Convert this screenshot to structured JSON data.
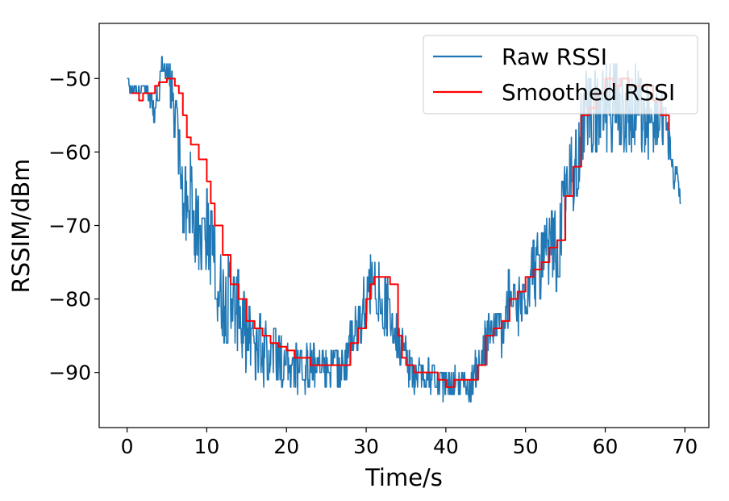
{
  "chart_data": {
    "type": "line",
    "title": "",
    "xlabel": "Time/s",
    "ylabel": "RSSIM/dBm",
    "xlim": [
      -3.5,
      73
    ],
    "ylim": [
      -97.5,
      -42.5
    ],
    "xticks": [
      0,
      10,
      20,
      30,
      40,
      50,
      60,
      70
    ],
    "yticks": [
      -90,
      -80,
      -70,
      -60,
      -50
    ],
    "xtick_labels": [
      "0",
      "10",
      "20",
      "30",
      "40",
      "50",
      "60",
      "70"
    ],
    "ytick_labels": [
      "−90",
      "−80",
      "−70",
      "−60",
      "−50"
    ],
    "grid": false,
    "legend": "top-right",
    "series": [
      {
        "name": "Raw RSSI",
        "color": "#1f77b4",
        "style": "noisy",
        "x": [
          0,
          0.5,
          1,
          1.5,
          2,
          2.5,
          3,
          3.5,
          4,
          4.5,
          5,
          5.5,
          6,
          6.5,
          7,
          7.5,
          8,
          8.5,
          9,
          9.5,
          10,
          11,
          12,
          13,
          14,
          15,
          16,
          17,
          18,
          19,
          20,
          21,
          22,
          23,
          24,
          25,
          26,
          27,
          28,
          29,
          30,
          31,
          32,
          33,
          34,
          35,
          36,
          37,
          38,
          39,
          40,
          41,
          42,
          43,
          44,
          45,
          46,
          47,
          48,
          49,
          50,
          51,
          52,
          53,
          54,
          55,
          56,
          57,
          58,
          59,
          60,
          61,
          62,
          63,
          64,
          65,
          66,
          67,
          68,
          68.5,
          69,
          69.5
        ],
        "y": [
          -50,
          -52,
          -51,
          -52,
          -51,
          -52,
          -54,
          -55,
          -50,
          -48,
          -49,
          -51,
          -56,
          -60,
          -66,
          -69,
          -65,
          -70,
          -71,
          -72,
          -70,
          -75,
          -80,
          -80,
          -82,
          -85,
          -86,
          -87,
          -87,
          -88,
          -89,
          -89,
          -90,
          -89,
          -89,
          -90,
          -89,
          -90,
          -86,
          -84,
          -79,
          -77,
          -80,
          -82,
          -85,
          -88,
          -91,
          -90,
          -90,
          -91,
          -92,
          -91,
          -91,
          -92,
          -89,
          -86,
          -85,
          -84,
          -80,
          -82,
          -78,
          -76,
          -76,
          -74,
          -74,
          -66,
          -62,
          -57,
          -53,
          -56,
          -55,
          -53,
          -54,
          -55,
          -54,
          -56,
          -56,
          -55,
          -59,
          -63,
          -64,
          -67
        ],
        "amp": [
          0.5,
          0.8,
          0.8,
          0.8,
          0.8,
          1,
          2,
          2.5,
          2,
          2,
          2,
          3,
          4,
          5,
          6,
          6,
          6,
          6,
          6,
          6,
          6,
          6,
          6,
          6,
          6,
          5,
          5,
          5,
          4,
          4,
          4,
          3.5,
          3.5,
          3.5,
          3,
          3,
          3,
          3,
          3.5,
          4,
          4.5,
          4.5,
          4.5,
          4,
          3.5,
          3,
          2.5,
          2.5,
          2.5,
          2,
          2,
          2,
          2,
          2,
          3,
          4,
          4,
          4,
          4.5,
          5,
          5,
          5,
          5.5,
          6,
          6,
          6,
          6,
          6,
          6,
          6.5,
          7,
          7,
          7,
          6.5,
          6,
          5.5,
          4.5,
          4,
          3,
          2,
          1.5,
          1
        ]
      },
      {
        "name": "Smoothed RSSI",
        "color": "#ff0000",
        "style": "step",
        "x": [
          0.5,
          1.5,
          2,
          2.5,
          3,
          3.5,
          4,
          5,
          6,
          6.5,
          7,
          7.5,
          8,
          9,
          10,
          10.5,
          11,
          12,
          13,
          14,
          15,
          16,
          17,
          18,
          19,
          20,
          21,
          22,
          23,
          24,
          25,
          26,
          27,
          27.5,
          28,
          29,
          30,
          30.5,
          31,
          32,
          33,
          34,
          34.5,
          35,
          36,
          37,
          38,
          39,
          40,
          41,
          42,
          43,
          44,
          45,
          46,
          47,
          48,
          49,
          50,
          51,
          52,
          53,
          54,
          55,
          56,
          57,
          58,
          59,
          60,
          61,
          62,
          63,
          64,
          65,
          66,
          67,
          68
        ],
        "y": [
          -52,
          -53,
          -52,
          -52,
          -52,
          -51,
          -50.5,
          -50,
          -51,
          -52,
          -55,
          -58,
          -59,
          -61,
          -64,
          -67,
          -70,
          -74,
          -78,
          -80,
          -83,
          -84,
          -85,
          -86,
          -86.5,
          -87,
          -88,
          -88,
          -89,
          -89,
          -89,
          -89,
          -89,
          -89,
          -86,
          -84,
          -80,
          -78,
          -77,
          -77,
          -78,
          -85,
          -88,
          -89,
          -90,
          -90,
          -90,
          -91,
          -92,
          -91,
          -91,
          -91,
          -89,
          -85,
          -84,
          -83,
          -80,
          -79,
          -77,
          -76,
          -75,
          -73,
          -72,
          -66,
          -62,
          -55,
          -54,
          -52,
          -50,
          -51,
          -50,
          -51,
          -51,
          -51,
          -53,
          -55,
          -57
        ]
      }
    ]
  }
}
